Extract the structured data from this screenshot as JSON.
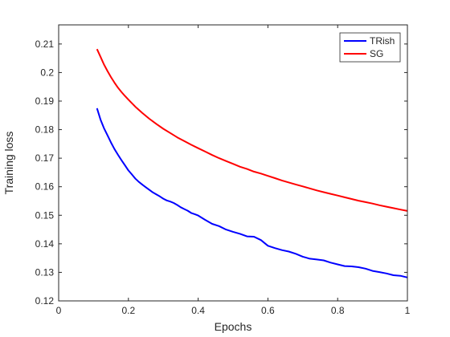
{
  "chart_data": {
    "type": "line",
    "xlabel": "Epochs",
    "ylabel": "Training loss",
    "xlim": [
      0,
      1
    ],
    "ylim": [
      0.12,
      0.2167
    ],
    "xticks": [
      "0",
      "0.2",
      "0.4",
      "0.6",
      "0.8",
      "1"
    ],
    "yticks": [
      "0.12",
      "0.13",
      "0.14",
      "0.15",
      "0.16",
      "0.17",
      "0.18",
      "0.19",
      "0.2",
      "0.21"
    ],
    "grid": false,
    "legend_position": "top-right",
    "series": [
      {
        "name": "TRish",
        "color": "#0000ff",
        "x": [
          0.11,
          0.12,
          0.13,
          0.14,
          0.15,
          0.16,
          0.17,
          0.18,
          0.19,
          0.2,
          0.21,
          0.22,
          0.23,
          0.24,
          0.25,
          0.26,
          0.27,
          0.28,
          0.29,
          0.3,
          0.31,
          0.32,
          0.33,
          0.34,
          0.35,
          0.36,
          0.37,
          0.38,
          0.39,
          0.4,
          0.42,
          0.44,
          0.46,
          0.48,
          0.5,
          0.52,
          0.54,
          0.56,
          0.58,
          0.6,
          0.62,
          0.64,
          0.66,
          0.68,
          0.7,
          0.72,
          0.74,
          0.76,
          0.78,
          0.8,
          0.82,
          0.84,
          0.86,
          0.88,
          0.9,
          0.92,
          0.94,
          0.96,
          0.98,
          1.0
        ],
        "y": [
          0.1875,
          0.1835,
          0.1805,
          0.178,
          0.1755,
          0.1732,
          0.1712,
          0.1693,
          0.1675,
          0.1657,
          0.1643,
          0.1628,
          0.1617,
          0.1607,
          0.1598,
          0.1589,
          0.158,
          0.1573,
          0.1566,
          0.1558,
          0.1552,
          0.1548,
          0.1543,
          0.1536,
          0.1528,
          0.1522,
          0.1516,
          0.1508,
          0.1504,
          0.1499,
          0.1484,
          0.147,
          0.1462,
          0.145,
          0.1442,
          0.1435,
          0.1426,
          0.1425,
          0.1413,
          0.1393,
          0.1385,
          0.1378,
          0.1373,
          0.1365,
          0.1355,
          0.1348,
          0.1345,
          0.1342,
          0.1334,
          0.1328,
          0.1322,
          0.1321,
          0.1318,
          0.1313,
          0.1305,
          0.1301,
          0.1296,
          0.129,
          0.1288,
          0.1282
        ]
      },
      {
        "name": "SG",
        "color": "#ff0000",
        "x": [
          0.11,
          0.12,
          0.13,
          0.14,
          0.15,
          0.16,
          0.17,
          0.18,
          0.19,
          0.2,
          0.22,
          0.24,
          0.26,
          0.28,
          0.3,
          0.32,
          0.34,
          0.36,
          0.38,
          0.4,
          0.42,
          0.44,
          0.46,
          0.48,
          0.5,
          0.52,
          0.54,
          0.56,
          0.58,
          0.6,
          0.62,
          0.64,
          0.66,
          0.68,
          0.7,
          0.72,
          0.74,
          0.76,
          0.78,
          0.8,
          0.82,
          0.84,
          0.86,
          0.88,
          0.9,
          0.92,
          0.94,
          0.96,
          0.98,
          1.0
        ],
        "y": [
          0.2082,
          0.2055,
          0.2028,
          0.2005,
          0.1984,
          0.1965,
          0.1947,
          0.1932,
          0.1918,
          0.1905,
          0.188,
          0.1858,
          0.1838,
          0.182,
          0.1803,
          0.1788,
          0.1773,
          0.176,
          0.1747,
          0.1735,
          0.1723,
          0.1711,
          0.17,
          0.169,
          0.168,
          0.167,
          0.1662,
          0.1653,
          0.1646,
          0.1638,
          0.163,
          0.1622,
          0.1615,
          0.1608,
          0.1601,
          0.1594,
          0.1587,
          0.1581,
          0.1575,
          0.1569,
          0.1563,
          0.1557,
          0.1551,
          0.1546,
          0.1541,
          0.1535,
          0.153,
          0.1525,
          0.152,
          0.1515
        ]
      }
    ]
  }
}
